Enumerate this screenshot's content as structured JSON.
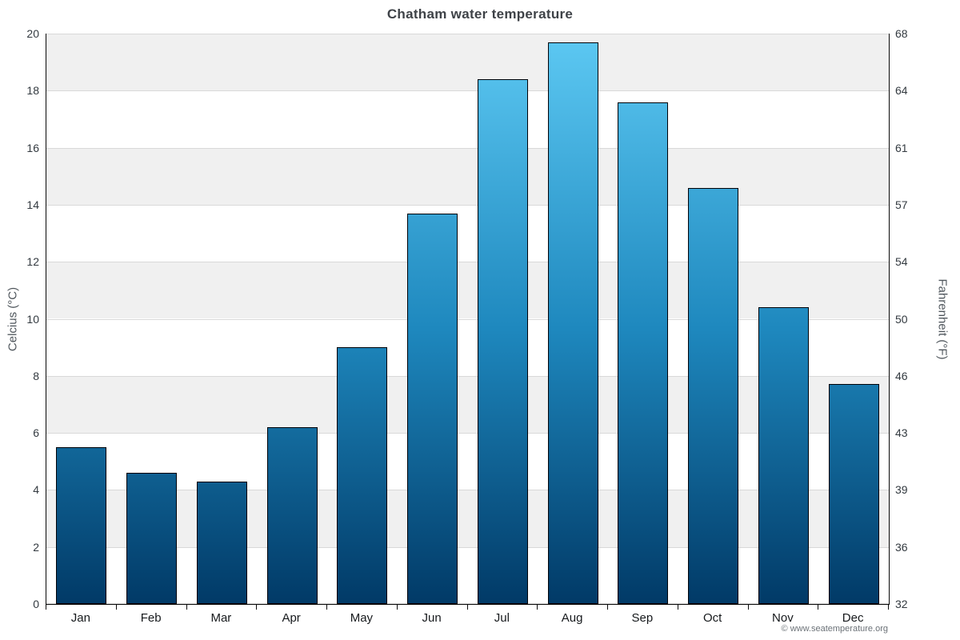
{
  "chart_data": {
    "type": "bar",
    "title": "Chatham water temperature",
    "categories": [
      "Jan",
      "Feb",
      "Mar",
      "Apr",
      "May",
      "Jun",
      "Jul",
      "Aug",
      "Sep",
      "Oct",
      "Nov",
      "Dec"
    ],
    "values": [
      5.5,
      4.6,
      4.3,
      6.2,
      9.0,
      13.7,
      18.4,
      19.7,
      17.6,
      14.6,
      10.4,
      7.7
    ],
    "ylabel_left": "Celcius (°C)",
    "ylabel_right": "Fahrenheit (°F)",
    "ylim": [
      0,
      20
    ],
    "y_ticks_celsius": [
      "0",
      "2",
      "4",
      "6",
      "8",
      "10",
      "12",
      "14",
      "16",
      "18",
      "20"
    ],
    "y_ticks_fahrenheit": [
      "32",
      "36",
      "39",
      "43",
      "46",
      "50",
      "54",
      "57",
      "61",
      "64",
      "68"
    ],
    "grid": true,
    "legend": "none",
    "band_colors": [
      "#ffffff",
      "#f0f0f0"
    ],
    "bar_gradient_top": "#5dc9f3",
    "bar_gradient_mid": "#1e88be",
    "bar_gradient_bottom": "#013a67",
    "bar_border_color": "#000208"
  },
  "footer": {
    "credit": "© www.seatemperature.org"
  }
}
